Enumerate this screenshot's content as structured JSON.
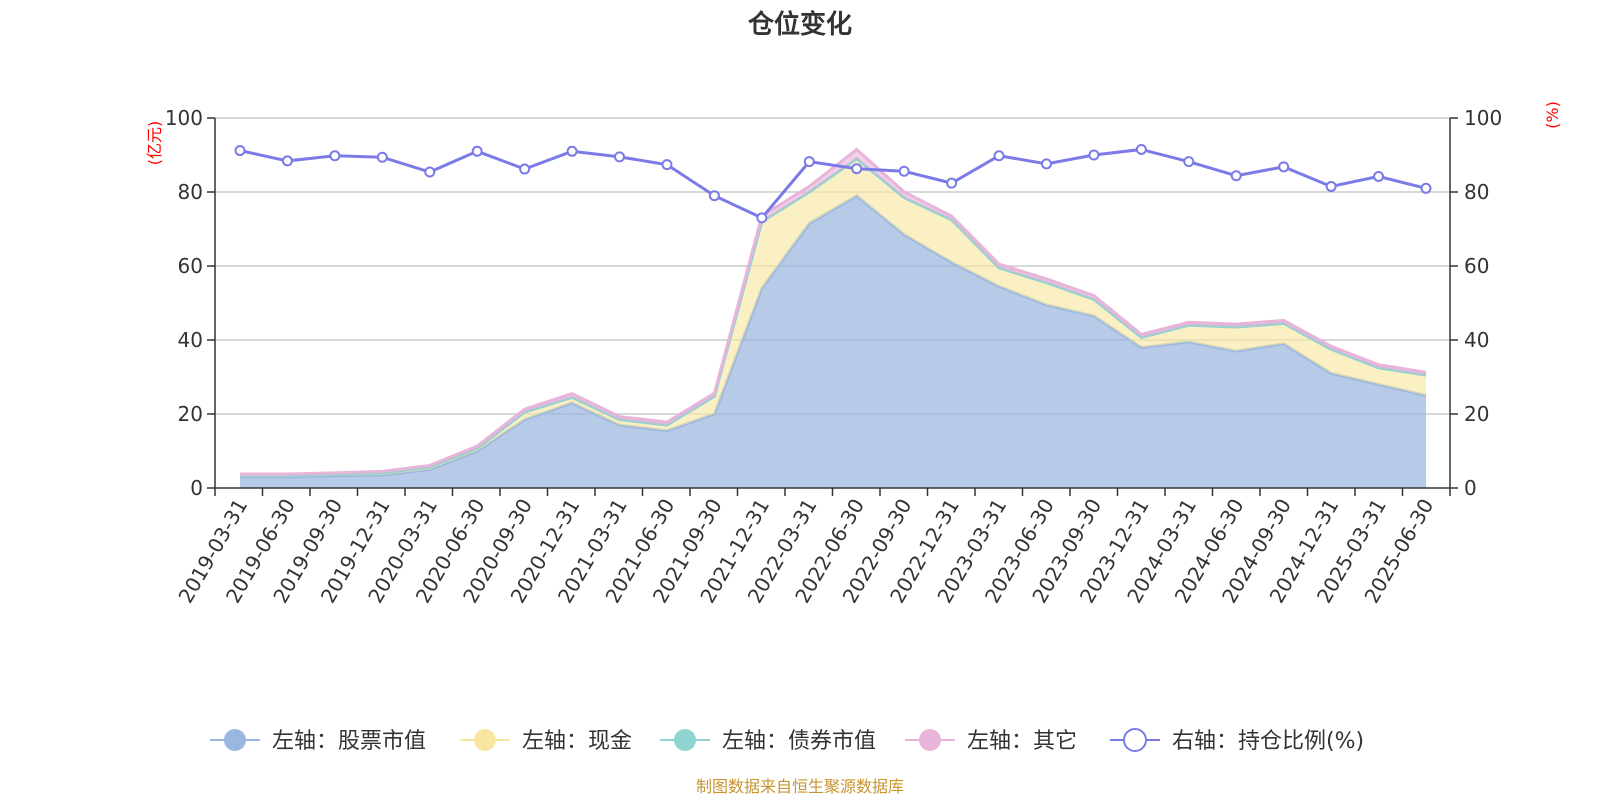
{
  "chart_data": {
    "type": "area",
    "title": "仓位变化",
    "left_axis": {
      "unit": "(亿元)",
      "ylim": [
        0,
        100
      ],
      "ticks": [
        0,
        20,
        40,
        60,
        80,
        100
      ]
    },
    "right_axis": {
      "unit": "(%)",
      "ylim": [
        0,
        100
      ],
      "ticks": [
        0,
        20,
        40,
        60,
        80,
        100
      ]
    },
    "grid": true,
    "legend_position": "bottom",
    "categories": [
      "2019-03-31",
      "2019-06-30",
      "2019-09-30",
      "2019-12-31",
      "2020-03-31",
      "2020-06-30",
      "2020-09-30",
      "2020-12-31",
      "2021-03-31",
      "2021-06-30",
      "2021-09-30",
      "2021-12-31",
      "2022-03-31",
      "2022-06-30",
      "2022-09-30",
      "2022-12-31",
      "2023-03-31",
      "2023-06-30",
      "2023-09-30",
      "2023-12-31",
      "2024-03-31",
      "2024-06-30",
      "2024-09-30",
      "2024-12-31",
      "2025-03-31",
      "2025-06-30"
    ],
    "series": [
      {
        "name": "左轴：股票市值",
        "axis": "left",
        "type": "area",
        "stack": true,
        "color": "#9bb7e0",
        "values": [
          3.0,
          3.0,
          3.3,
          3.5,
          5.0,
          10.0,
          18.5,
          23.0,
          17.0,
          15.5,
          20.0,
          54.0,
          71.5,
          79.0,
          68.5,
          61.0,
          54.5,
          49.5,
          46.5,
          38.0,
          39.5,
          37.0,
          39.0,
          31.0,
          28.0,
          25.0
        ]
      },
      {
        "name": "左轴：现金",
        "axis": "left",
        "type": "area",
        "stack": true,
        "color": "#f8e6a0",
        "values": [
          0.5,
          0.5,
          0.5,
          0.6,
          0.7,
          0.8,
          2.0,
          1.5,
          1.5,
          1.5,
          4.8,
          18.0,
          8.5,
          10.0,
          10.0,
          11.5,
          5.0,
          6.0,
          4.5,
          2.7,
          4.5,
          6.5,
          5.5,
          6.5,
          4.5,
          5.5
        ]
      },
      {
        "name": "左轴：债券市值",
        "axis": "left",
        "type": "area",
        "stack": true,
        "color": "#8fd3d3",
        "values": [
          0,
          0,
          0,
          0,
          0,
          0,
          0,
          0,
          0,
          0,
          0,
          0,
          0,
          0,
          0,
          0,
          0,
          0,
          0,
          0,
          0,
          0,
          0,
          0,
          0,
          0
        ]
      },
      {
        "name": "左轴：其它",
        "axis": "left",
        "type": "area",
        "stack": true,
        "color": "#e8b4da",
        "values": [
          0.3,
          0.3,
          0.3,
          0.4,
          0.4,
          0.5,
          0.8,
          1.0,
          0.8,
          0.8,
          0.8,
          1.5,
          1.5,
          2.5,
          1.5,
          1.0,
          1.0,
          1.0,
          1.0,
          0.8,
          0.8,
          0.8,
          0.8,
          0.8,
          0.8,
          0.8
        ]
      },
      {
        "name": "右轴：持仓比例(%)",
        "axis": "right",
        "type": "line",
        "color": "#7b7be8",
        "values": [
          91.2,
          88.4,
          89.8,
          89.4,
          85.4,
          91.0,
          86.2,
          91.0,
          89.5,
          87.4,
          79.0,
          73.0,
          88.2,
          86.3,
          85.6,
          82.4,
          89.8,
          87.6,
          90.0,
          91.5,
          88.2,
          84.4,
          86.8,
          81.5,
          84.2,
          81.0
        ]
      }
    ]
  },
  "footer": {
    "source": "制图数据来自恒生聚源数据库"
  },
  "colors": {
    "unit_label": "#ff0000",
    "source_text": "#c8952f",
    "axis_line": "#333333",
    "grid": "#cccccc"
  }
}
